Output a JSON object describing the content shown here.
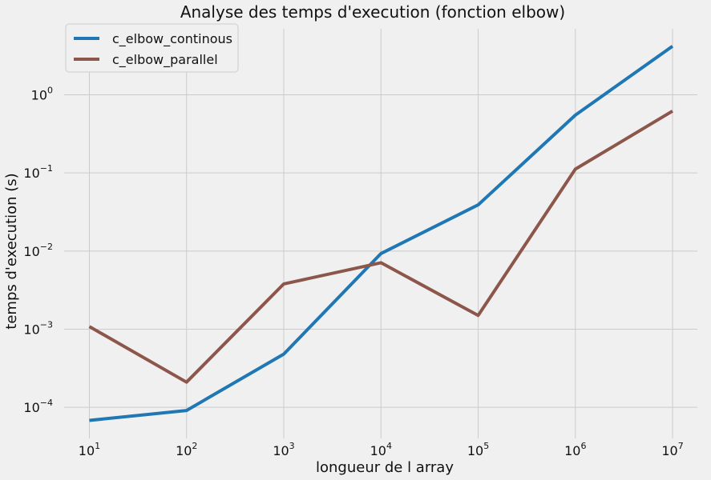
{
  "chart_data": {
    "type": "line",
    "title": "Analyse des temps d'execution (fonction elbow)",
    "xlabel": "longueur de l array",
    "ylabel": "temps d'execution (s)",
    "xscale": "log",
    "yscale": "log",
    "xlim": [
      5.5,
      18000000
    ],
    "ylim": [
      4e-05,
      7
    ],
    "grid": true,
    "legend_position": "top-left",
    "x_ticks": [
      10,
      100,
      1000,
      10000,
      100000,
      1000000,
      10000000
    ],
    "x_tick_labels": [
      {
        "base": "10",
        "exp": "1"
      },
      {
        "base": "10",
        "exp": "2"
      },
      {
        "base": "10",
        "exp": "3"
      },
      {
        "base": "10",
        "exp": "4"
      },
      {
        "base": "10",
        "exp": "5"
      },
      {
        "base": "10",
        "exp": "6"
      },
      {
        "base": "10",
        "exp": "7"
      }
    ],
    "y_ticks": [
      0.0001,
      0.001,
      0.01,
      0.1,
      1
    ],
    "y_tick_labels": [
      {
        "base": "10",
        "exp": "−4"
      },
      {
        "base": "10",
        "exp": "−3"
      },
      {
        "base": "10",
        "exp": "−2"
      },
      {
        "base": "10",
        "exp": "−1"
      },
      {
        "base": "10",
        "exp": "0"
      }
    ],
    "x": [
      10,
      100,
      1000,
      10000,
      100000,
      1000000,
      10000000
    ],
    "series": [
      {
        "name": "c_elbow_continous",
        "color": "#1f77b4",
        "values": [
          6.8e-05,
          9.1e-05,
          0.00048,
          0.0093,
          0.039,
          0.55,
          4.2
        ]
      },
      {
        "name": "c_elbow_parallel",
        "color": "#8c564b",
        "values": [
          0.00108,
          0.00021,
          0.0038,
          0.0071,
          0.0015,
          0.112,
          0.62
        ]
      }
    ]
  }
}
